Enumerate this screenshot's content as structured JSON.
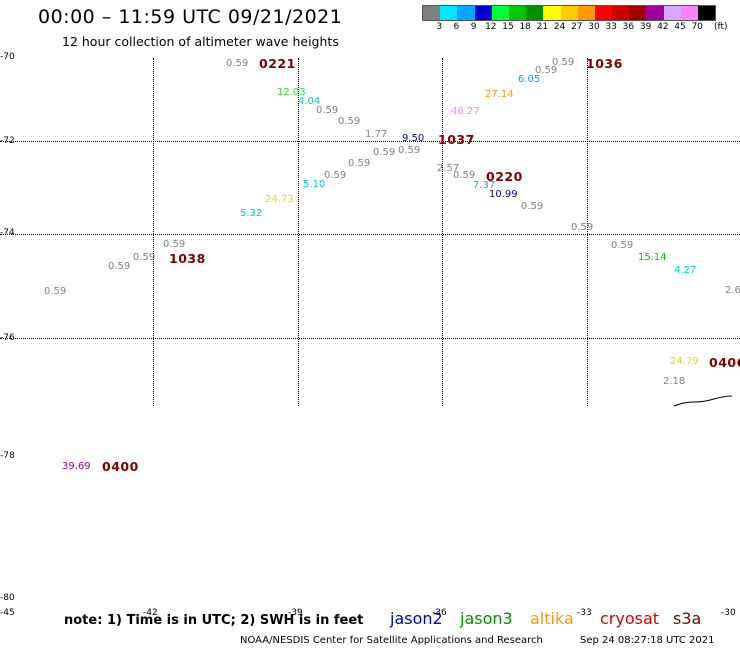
{
  "title": "00:00 – 11:59 UTC 09/21/2021",
  "subtitle": "12 hour collection of altimeter wave heights",
  "legend": {
    "unit": "(ft)",
    "labels": [
      "3",
      "6",
      "9",
      "12",
      "15",
      "18",
      "21",
      "24",
      "27",
      "30",
      "33",
      "36",
      "39",
      "42",
      "45",
      "70"
    ],
    "colors": [
      "#808080",
      "#00e5ff",
      "#00a8ff",
      "#0000d0",
      "#00ff3a",
      "#00c800",
      "#009000",
      "#ffff00",
      "#ffcc00",
      "#ff9900",
      "#ff0000",
      "#d00000",
      "#a00000",
      "#a000a0",
      "#d8a8ff",
      "#ff80ff",
      "#000000"
    ]
  },
  "latitude_labels": [
    "-70",
    "-72",
    "-74",
    "-76",
    "-78",
    "-80"
  ],
  "longitude_labels": [
    "-45",
    "-42",
    "-39",
    "-36",
    "-33",
    "-30"
  ],
  "wave_heights": [
    {
      "id": "v1",
      "text": "0.59",
      "color": "#808080"
    },
    {
      "id": "v2",
      "text": "12.03",
      "color": "#33dd33"
    },
    {
      "id": "v3",
      "text": "4.04",
      "color": "#00cccc"
    },
    {
      "id": "v4",
      "text": "0.59",
      "color": "#808080"
    },
    {
      "id": "v5",
      "text": "0.59",
      "color": "#808080"
    },
    {
      "id": "v6",
      "text": "1.77",
      "color": "#808080"
    },
    {
      "id": "v7",
      "text": "0.59",
      "color": "#808080"
    },
    {
      "id": "v8",
      "text": "0.59",
      "color": "#808080"
    },
    {
      "id": "v9",
      "text": "9.50",
      "color": "#0000cc"
    },
    {
      "id": "v10",
      "text": "0.59",
      "color": "#808080"
    },
    {
      "id": "v11",
      "text": "0.59",
      "color": "#808080"
    },
    {
      "id": "v12",
      "text": "5.10",
      "color": "#00cccc"
    },
    {
      "id": "v13",
      "text": "24.73",
      "color": "#ffcc00"
    },
    {
      "id": "v14",
      "text": "5.32",
      "color": "#00cccc"
    },
    {
      "id": "v15",
      "text": "0.59",
      "color": "#808080"
    },
    {
      "id": "v16",
      "text": "0.59",
      "color": "#808080"
    },
    {
      "id": "v17",
      "text": "0.59",
      "color": "#808080"
    },
    {
      "id": "v18",
      "text": "0.59",
      "color": "#808080"
    },
    {
      "id": "v19",
      "text": "0.59",
      "color": "#808080"
    },
    {
      "id": "v20",
      "text": "0.59",
      "color": "#808080"
    },
    {
      "id": "v21",
      "text": "6.05",
      "color": "#00a8d0"
    },
    {
      "id": "v22",
      "text": "27.14",
      "color": "#ff9900"
    },
    {
      "id": "v23",
      "text": "46.27",
      "color": "#ee88ee"
    },
    {
      "id": "v24",
      "text": "2.57",
      "color": "#808080"
    },
    {
      "id": "v25",
      "text": "0.59",
      "color": "#808080"
    },
    {
      "id": "v26",
      "text": "7.37",
      "color": "#00a8ff"
    },
    {
      "id": "v27",
      "text": "10.99",
      "color": "#0000cc"
    },
    {
      "id": "v28",
      "text": "0.59",
      "color": "#808080"
    },
    {
      "id": "v29",
      "text": "0.59",
      "color": "#808080"
    },
    {
      "id": "v30",
      "text": "0.59",
      "color": "#808080"
    },
    {
      "id": "v31",
      "text": "15.14",
      "color": "#00c800"
    },
    {
      "id": "v32",
      "text": "4.27",
      "color": "#00cccc"
    },
    {
      "id": "v33",
      "text": "2.6",
      "color": "#808080"
    },
    {
      "id": "v34",
      "text": "24.79",
      "color": "#ffcc00"
    },
    {
      "id": "v35",
      "text": "2.18",
      "color": "#808080"
    },
    {
      "id": "v36",
      "text": "39.69",
      "color": "#a000a0"
    }
  ],
  "pass_times": [
    {
      "id": "p1",
      "text": "0221"
    },
    {
      "id": "p2",
      "text": "1036"
    },
    {
      "id": "p3",
      "text": "1037"
    },
    {
      "id": "p4",
      "text": "0220"
    },
    {
      "id": "p5",
      "text": "1038"
    },
    {
      "id": "p6",
      "text": "0406"
    },
    {
      "id": "p7",
      "text": "0400"
    }
  ],
  "footer": {
    "note": "note: 1) Time is in UTC; 2) SWH is in feet",
    "satellites": [
      {
        "name": "jason2",
        "color": "#0000cc"
      },
      {
        "name": "jason3",
        "color": "#009000"
      },
      {
        "name": "altika",
        "color": "#ff9900"
      },
      {
        "name": "cryosat",
        "color": "#dd0000"
      },
      {
        "name": "s3a",
        "color": "#800000"
      }
    ],
    "credit": "NOAA/NESDIS Center for Satellite Applications and Research",
    "timestamp": "Sep 24 08:27:18 UTC 2021"
  }
}
